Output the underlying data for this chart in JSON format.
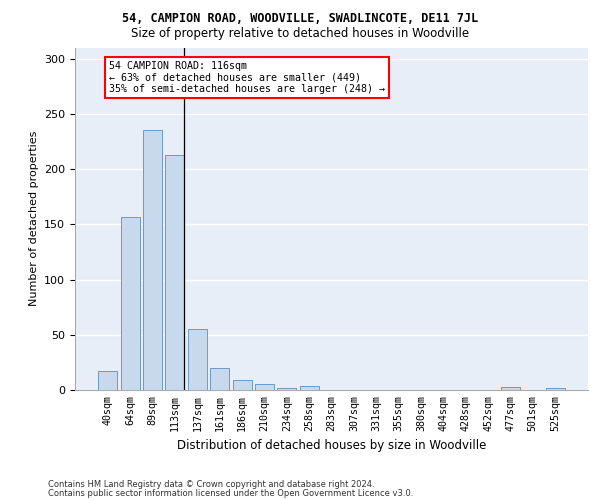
{
  "title": "54, CAMPION ROAD, WOODVILLE, SWADLINCOTE, DE11 7JL",
  "subtitle": "Size of property relative to detached houses in Woodville",
  "xlabel": "Distribution of detached houses by size in Woodville",
  "ylabel": "Number of detached properties",
  "bar_color": "#c8d9ee",
  "bar_edge_color": "#5a8fc0",
  "bg_color": "#e8eef7",
  "categories": [
    "40sqm",
    "64sqm",
    "89sqm",
    "113sqm",
    "137sqm",
    "161sqm",
    "186sqm",
    "210sqm",
    "234sqm",
    "258sqm",
    "283sqm",
    "307sqm",
    "331sqm",
    "355sqm",
    "380sqm",
    "404sqm",
    "428sqm",
    "452sqm",
    "477sqm",
    "501sqm",
    "525sqm"
  ],
  "values": [
    17,
    157,
    235,
    213,
    55,
    20,
    9,
    5,
    2,
    4,
    0,
    0,
    0,
    0,
    0,
    0,
    0,
    0,
    3,
    0,
    2
  ],
  "ylim": [
    0,
    310
  ],
  "yticks": [
    0,
    50,
    100,
    150,
    200,
    250,
    300
  ],
  "annotation_text": "54 CAMPION ROAD: 116sqm\n← 63% of detached houses are smaller (449)\n35% of semi-detached houses are larger (248) →",
  "footer_line1": "Contains HM Land Registry data © Crown copyright and database right 2024.",
  "footer_line2": "Contains public sector information licensed under the Open Government Licence v3.0.",
  "vline_x": 3.42
}
